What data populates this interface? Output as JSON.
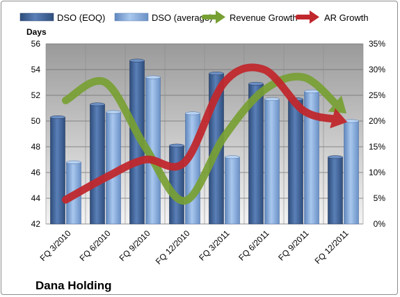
{
  "chart_data": {
    "type": "bar",
    "title": "Dana Holding",
    "ylabel": "Days",
    "categories": [
      "FQ 3/2010",
      "FQ 6/2010",
      "FQ 9/2010",
      "FQ 12/2010",
      "FQ 3/2011",
      "FQ 6/2011",
      "FQ 9/2011",
      "FQ 12/2011"
    ],
    "ylim": [
      42,
      56
    ],
    "yticks": [
      42,
      44,
      46,
      48,
      50,
      52,
      54,
      56
    ],
    "y2lim": [
      0,
      35
    ],
    "y2ticks": [
      "0%",
      "5%",
      "10%",
      "15%",
      "20%",
      "25%",
      "30%",
      "35%"
    ],
    "series": [
      {
        "name": "DSO (EOQ)",
        "type": "bar",
        "axis": "left",
        "color": "#4a6fa5",
        "values": [
          50.3,
          51.3,
          54.7,
          48.1,
          53.7,
          52.9,
          51.7,
          47.2
        ]
      },
      {
        "name": "DSO (average)",
        "type": "bar",
        "axis": "left",
        "color": "#8fb4e3",
        "values": [
          46.8,
          50.7,
          53.4,
          50.6,
          47.2,
          51.7,
          52.3,
          50.0
        ]
      },
      {
        "name": "Revenue Growth",
        "type": "line",
        "axis": "right",
        "color": "#77a033",
        "values": [
          24.0,
          27.5,
          15.0,
          4.5,
          17.0,
          26.0,
          28.5,
          22.0
        ]
      },
      {
        "name": "AR Growth",
        "type": "line",
        "axis": "right",
        "color": "#c0282d",
        "values": [
          4.7,
          9.0,
          12.5,
          12.0,
          27.5,
          30.0,
          22.0,
          20.0
        ]
      }
    ],
    "legend_position": "top",
    "grid": true
  }
}
